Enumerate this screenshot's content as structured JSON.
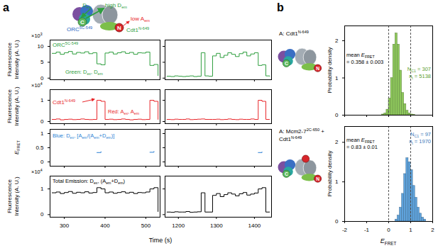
{
  "chart_data": [
    {
      "type": "line",
      "color": "#2e9e3e",
      "x": [
        270,
        280,
        290,
        300,
        310,
        320,
        330,
        340,
        350,
        360,
        370,
        380,
        390,
        400,
        410,
        420,
        430,
        440,
        450,
        460,
        470,
        480,
        490,
        500,
        510,
        520,
        530
      ],
      "values": [
        7.8,
        8.2,
        7.5,
        8.0,
        8.4,
        7.6,
        8.1,
        7.9,
        8.3,
        7.7,
        8.0,
        4.5,
        4.2,
        7.9,
        8.2,
        7.6,
        8.0,
        8.3,
        7.8,
        8.1,
        7.5,
        8.0,
        7.9,
        8.2,
        4.0,
        4.3,
        0.8
      ],
      "xlim": [
        265,
        535
      ],
      "xticks": [
        300,
        400,
        500
      ],
      "ylim": [
        -0.5,
        12
      ],
      "yticks": [
        0,
        5,
        10
      ],
      "tick_labels": "y",
      "ylabel": [
        [
          "Fluorescence"
        ],
        [
          "Intensity (A. U.)"
        ]
      ],
      "annotations": [
        {
          "lines": [
            [
              "ORC",
              {
                "sup": "5C-549"
              }
            ]
          ],
          "color": "#2e9e3e"
        },
        {
          "lines": [
            [
              "Green: D",
              {
                "sub": "ex"
              },
              ", D",
              {
                "sub": "em"
              }
            ]
          ],
          "color": "#2e9e3e"
        },
        {
          "lines": [
            [
              "×10",
              {
                "sup": "3"
              }
            ]
          ],
          "color": "#000000"
        }
      ]
    },
    {
      "type": "line",
      "color": "#2e9e3e",
      "x": [
        1170,
        1180,
        1190,
        1200,
        1210,
        1220,
        1230,
        1240,
        1250,
        1260,
        1270,
        1280,
        1290,
        1300,
        1310,
        1320,
        1330,
        1340,
        1350,
        1360,
        1370,
        1380,
        1390,
        1400,
        1410,
        1420,
        1430,
        1440
      ],
      "values": [
        0.6,
        0.5,
        0.7,
        0.6,
        0.5,
        0.6,
        0.7,
        0.5,
        0.6,
        8.0,
        0.7,
        0.6,
        7.0,
        7.8,
        6.5,
        7.2,
        8.0,
        7.5,
        6.8,
        7.7,
        8.2,
        7.0,
        7.6,
        8.0,
        4.0,
        4.2,
        0.7,
        0.6
      ],
      "xlim": [
        1165,
        1445
      ],
      "xticks": [
        1200,
        1300,
        1400
      ],
      "ylim": [
        -0.5,
        12
      ],
      "yticks": [
        0,
        5,
        10
      ],
      "tick_labels": false
    },
    {
      "type": "line",
      "color": "#e8262a",
      "x": [
        270,
        280,
        290,
        300,
        310,
        320,
        330,
        340,
        350,
        360,
        370,
        380,
        390,
        400,
        410,
        420,
        430,
        440,
        450,
        460,
        470,
        480,
        490,
        500,
        510,
        520,
        530
      ],
      "values": [
        0.1,
        0.12,
        0.08,
        0.1,
        0.11,
        0.09,
        0.1,
        0.12,
        0.1,
        0.09,
        0.1,
        1.0,
        0.95,
        0.1,
        0.11,
        0.09,
        0.1,
        0.12,
        0.1,
        0.08,
        0.1,
        0.11,
        0.09,
        0.1,
        1.0,
        0.95,
        0.1
      ],
      "xlim": [
        265,
        535
      ],
      "xticks": [
        300,
        400,
        500
      ],
      "ylim": [
        -0.1,
        1.5
      ],
      "yticks": [
        0,
        1
      ],
      "tick_labels": "y",
      "ylabel": [
        [
          "Fluorescence"
        ],
        [
          "Intensity (A. U.)"
        ]
      ],
      "annotations": [
        {
          "lines": [
            [
              "Cdt1",
              {
                "sup": "N-649"
              }
            ]
          ],
          "color": "#e8262a"
        },
        {
          "lines": [
            [
              "Red: A",
              {
                "sub": "ex"
              },
              ", A",
              {
                "sub": "em"
              }
            ]
          ],
          "color": "#e8262a"
        },
        {
          "lines": [
            [
              "×10",
              {
                "sup": "4"
              }
            ]
          ],
          "color": "#000000"
        }
      ]
    },
    {
      "type": "line",
      "color": "#e8262a",
      "x": [
        1170,
        1180,
        1190,
        1200,
        1210,
        1220,
        1230,
        1240,
        1250,
        1260,
        1270,
        1280,
        1290,
        1300,
        1310,
        1320,
        1330,
        1340,
        1350,
        1360,
        1370,
        1380,
        1390,
        1400,
        1410,
        1420,
        1430,
        1440
      ],
      "values": [
        0.1,
        0.09,
        0.11,
        0.1,
        0.1,
        0.12,
        0.09,
        0.1,
        0.11,
        0.12,
        0.1,
        0.1,
        0.1,
        0.11,
        0.09,
        0.1,
        0.12,
        0.1,
        0.09,
        0.11,
        0.1,
        0.1,
        0.12,
        0.1,
        1.0,
        0.95,
        0.1,
        0.1
      ],
      "xlim": [
        1165,
        1445
      ],
      "xticks": [
        1200,
        1300,
        1400
      ],
      "ylim": [
        -0.1,
        1.5
      ],
      "yticks": [
        0,
        1
      ],
      "tick_labels": false
    },
    {
      "type": "line",
      "color": "#2a7fd4",
      "x": [
        270,
        280,
        290,
        300,
        310,
        320,
        330,
        340,
        350,
        360,
        370,
        380,
        390,
        400,
        410,
        420,
        430,
        440,
        450,
        460,
        470,
        480,
        490,
        500,
        510,
        520,
        530
      ],
      "values": [
        null,
        null,
        null,
        null,
        null,
        null,
        null,
        null,
        null,
        null,
        null,
        0.33,
        0.36,
        null,
        null,
        null,
        null,
        null,
        null,
        null,
        null,
        null,
        null,
        null,
        0.34,
        0.37,
        null
      ],
      "xlim": [
        265,
        535
      ],
      "xticks": [
        300,
        400,
        500
      ],
      "ylim": [
        -0.15,
        1.15
      ],
      "yticks": [
        0,
        0.5,
        1
      ],
      "tick_labels": "y",
      "ylabel": [
        [
          {
            "i": "E"
          },
          {
            "sub": "FRET"
          }
        ]
      ],
      "annotations": [
        {
          "lines": [
            [
              "Blue: D",
              {
                "sub": "ex"
              },
              ", [A",
              {
                "sub": "em"
              },
              "/(A",
              {
                "sub": "em"
              },
              "+D",
              {
                "sub": "em"
              },
              ")]"
            ]
          ],
          "color": "#2a7fd4"
        }
      ]
    },
    {
      "type": "line",
      "color": "#2a7fd4",
      "x": [
        1170,
        1180,
        1190,
        1200,
        1210,
        1220,
        1230,
        1240,
        1250,
        1260,
        1270,
        1280,
        1290,
        1300,
        1310,
        1320,
        1330,
        1340,
        1350,
        1360,
        1370,
        1380,
        1390,
        1400,
        1410,
        1420,
        1430,
        1440
      ],
      "values": [
        null,
        null,
        null,
        null,
        null,
        null,
        null,
        null,
        null,
        null,
        null,
        null,
        null,
        null,
        null,
        null,
        null,
        null,
        null,
        null,
        null,
        null,
        null,
        null,
        0.33,
        0.35,
        null,
        null
      ],
      "xlim": [
        1165,
        1445
      ],
      "xticks": [
        1200,
        1300,
        1400
      ],
      "ylim": [
        -0.15,
        1.15
      ],
      "yticks": [
        0,
        0.5,
        1
      ],
      "tick_labels": false
    },
    {
      "type": "line",
      "color": "#000000",
      "x": [
        270,
        280,
        290,
        300,
        310,
        320,
        330,
        340,
        350,
        360,
        370,
        380,
        390,
        400,
        410,
        420,
        430,
        440,
        450,
        460,
        470,
        480,
        490,
        500,
        510,
        520,
        530
      ],
      "values": [
        0.85,
        0.88,
        0.82,
        0.86,
        0.9,
        0.83,
        0.87,
        0.85,
        0.89,
        0.84,
        0.86,
        1.05,
        1.0,
        0.85,
        0.88,
        0.83,
        0.86,
        0.89,
        0.84,
        0.87,
        0.82,
        0.86,
        0.85,
        0.88,
        1.0,
        1.05,
        0.12
      ],
      "xlim": [
        265,
        535
      ],
      "xticks": [
        300,
        400,
        500
      ],
      "ylim": [
        -0.1,
        1.5
      ],
      "yticks": [
        0,
        1
      ],
      "tick_labels": true,
      "ylabel": [
        [
          "Fluorescence"
        ],
        [
          "Intensity (A. U.)"
        ]
      ],
      "xlabel": [
        [
          "Time (s)"
        ]
      ],
      "annotations": [
        {
          "lines": [
            [
              "Total Emission: D",
              {
                "sub": "ex"
              },
              ", (A",
              {
                "sub": "em"
              },
              "+D",
              {
                "sub": "em"
              },
              ")"
            ]
          ],
          "color": "#000000"
        },
        {
          "lines": [
            [
              "×10",
              {
                "sup": "4"
              }
            ]
          ],
          "color": "#000000"
        }
      ]
    },
    {
      "type": "line",
      "color": "#000000",
      "x": [
        1170,
        1180,
        1190,
        1200,
        1210,
        1220,
        1230,
        1240,
        1250,
        1260,
        1270,
        1280,
        1290,
        1300,
        1310,
        1320,
        1330,
        1340,
        1350,
        1360,
        1370,
        1380,
        1390,
        1400,
        1410,
        1420,
        1430,
        1440
      ],
      "values": [
        0.1,
        0.09,
        0.11,
        0.1,
        0.1,
        0.12,
        0.09,
        0.1,
        0.11,
        0.85,
        0.1,
        0.1,
        0.75,
        0.82,
        0.7,
        0.78,
        0.85,
        0.8,
        0.73,
        0.81,
        0.86,
        0.76,
        0.8,
        0.84,
        1.0,
        1.05,
        0.1,
        0.1
      ],
      "xlim": [
        1165,
        1445
      ],
      "xticks": [
        1200,
        1300,
        1400
      ],
      "ylim": [
        -0.1,
        1.5
      ],
      "yticks": [
        0,
        1
      ],
      "tick_labels": "x"
    },
    {
      "type": "histogram",
      "color": "#8dc75b",
      "bins": [
        -0.3,
        -0.2,
        -0.1,
        0,
        0.1,
        0.2,
        0.3,
        0.4,
        0.5,
        0.6,
        0.7,
        0.8,
        0.9,
        1.0,
        1.1,
        1.2
      ],
      "values": [
        0.02,
        0.05,
        0.15,
        0.45,
        1.0,
        1.9,
        2.2,
        1.9,
        1.2,
        0.6,
        0.3,
        0.12,
        0.05,
        0.02,
        0.01
      ],
      "xlim": [
        -2,
        2
      ],
      "xticks": [
        -2,
        -1,
        0,
        1,
        2
      ],
      "ylim": [
        0,
        2.4
      ],
      "yticks": [
        0,
        1,
        2
      ],
      "tick_labels": "y",
      "vlines": [
        0,
        1
      ],
      "ylabel": [
        [
          "Probability density"
        ]
      ],
      "annotations": [
        {
          "lines": [
            [
              "mean ",
              {
                "i": "E"
              },
              {
                "sub": "FRET"
              }
            ],
            [
              "= 0.358 ± 0.003"
            ]
          ],
          "color": "#000000"
        },
        {
          "lines": [
            [
              "N",
              {
                "sub": "C1"
              },
              " = 307"
            ],
            [
              "n",
              {
                "sub": "t"
              },
              " = 5138"
            ]
          ],
          "color": "#5a9e2e"
        }
      ]
    },
    {
      "type": "histogram",
      "color": "#5fa3dc",
      "bins": [
        0.3,
        0.4,
        0.5,
        0.6,
        0.7,
        0.8,
        0.9,
        1.0,
        1.1,
        1.2,
        1.3,
        1.4,
        1.5,
        1.6,
        1.7
      ],
      "values": [
        0.05,
        0.15,
        0.35,
        0.7,
        1.2,
        1.6,
        1.5,
        1.3,
        0.9,
        0.6,
        0.35,
        0.2,
        0.1,
        0.05
      ],
      "xlim": [
        -2,
        2
      ],
      "xticks": [
        -2,
        -1,
        0,
        1,
        2
      ],
      "ylim": [
        0,
        2.4
      ],
      "yticks": [
        0,
        1,
        2
      ],
      "tick_labels": true,
      "vlines": [
        0,
        1
      ],
      "ylabel": [
        [
          "Probability density"
        ]
      ],
      "xlabel": [
        [
          {
            "i": "E"
          },
          {
            "sub": "FRET"
          }
        ]
      ],
      "annotations": [
        {
          "lines": [
            [
              "mean ",
              {
                "i": "E"
              },
              {
                "sub": "FRET"
              }
            ],
            [
              "= 0.83 ± 0.01"
            ]
          ],
          "color": "#000000"
        },
        {
          "lines": [
            [
              "N",
              {
                "sub": "C1"
              },
              " = 97"
            ],
            [
              "n",
              {
                "sub": "t"
              },
              " = 1970"
            ]
          ],
          "color": "#3a78b8"
        }
      ]
    }
  ],
  "figure": {
    "panel_labels": [
      "a",
      "b"
    ],
    "schematic_a": {
      "donor": "C",
      "acceptor": "N",
      "labels": [
        {
          "lines": [
            [
              "D",
              {
                "sub": "ex"
              }
            ]
          ],
          "color": "#2e9e3e"
        },
        {
          "lines": [
            [
              "high D",
              {
                "sub": "em"
              }
            ]
          ],
          "color": "#2e9e3e"
        },
        {
          "lines": [
            [
              "low A",
              {
                "sub": "em"
              }
            ]
          ],
          "color": "#e8262a"
        },
        {
          "lines": [
            [
              "ORC",
              {
                "sup": "5C-549"
              }
            ]
          ],
          "color": "#1f5fbf"
        },
        {
          "lines": [
            [
              "Cdt1",
              {
                "sup": "N-649"
              }
            ]
          ],
          "color": "#2e9e3e"
        }
      ]
    },
    "schematic_b": [
      {
        "lines": [
          [
            "A: Cdt1",
            {
              "sup": "N-649"
            }
          ]
        ],
        "color": "#000000"
      },
      {
        "lines": [
          [
            "A: Mcm2-7",
            {
              "sup": "2C-650"
            },
            " +"
          ],
          [
            "Cdt1",
            {
              "sup": "N-649"
            }
          ]
        ],
        "color": "#000000"
      }
    ]
  }
}
